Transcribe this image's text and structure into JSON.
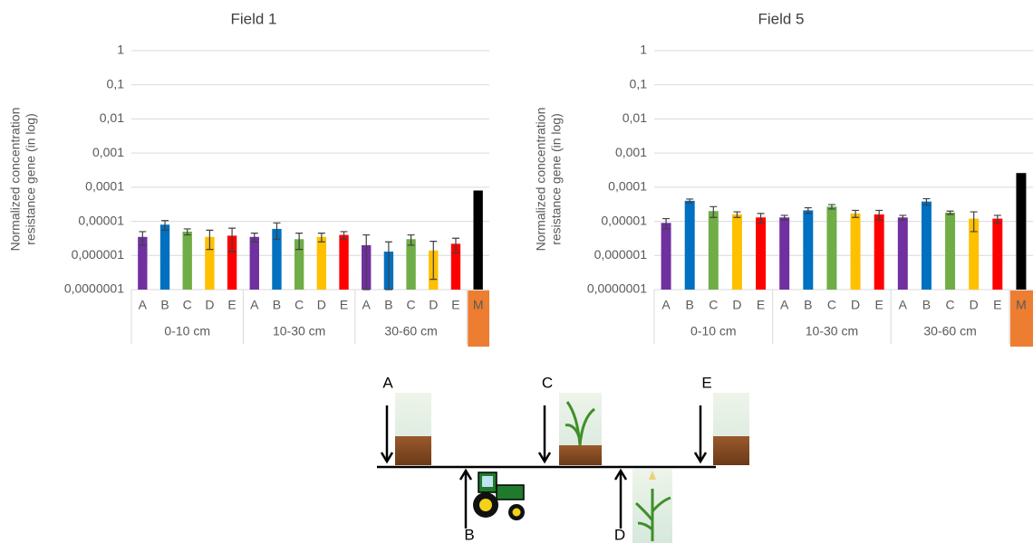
{
  "chart_data": [
    {
      "type": "bar",
      "title": "Field 1",
      "ylabel_lines": [
        "Normalized  concentration",
        "resistance gene  (in log)"
      ],
      "categories": [
        "A",
        "B",
        "C",
        "D",
        "E",
        "A",
        "B",
        "C",
        "D",
        "E",
        "A",
        "B",
        "C",
        "D",
        "E",
        "M"
      ],
      "category_groups": [
        "0-10 cm",
        "10-30 cm",
        "30-60 cm"
      ],
      "values": [
        3.5e-06,
        8e-06,
        5e-06,
        3.5e-06,
        3.8e-06,
        3.5e-06,
        6e-06,
        3e-06,
        3.5e-06,
        4e-06,
        2e-06,
        1.3e-06,
        3e-06,
        1.4e-06,
        2.2e-06,
        8e-05
      ],
      "errors": [
        1.5e-06,
        2.5e-06,
        1e-06,
        2e-06,
        2.5e-06,
        1e-06,
        3e-06,
        1.5e-06,
        1e-06,
        1e-06,
        2e-06,
        1.2e-06,
        1e-06,
        1.2e-06,
        1e-06,
        null
      ],
      "colors": [
        "#7030a0",
        "#0070c0",
        "#70ad47",
        "#ffc000",
        "#ff0000",
        "#7030a0",
        "#0070c0",
        "#70ad47",
        "#ffc000",
        "#ff0000",
        "#7030a0",
        "#0070c0",
        "#70ad47",
        "#ffc000",
        "#ff0000",
        "#000000"
      ],
      "highlight_color": "#ed7d31",
      "log_scale": true,
      "grid": true,
      "ylim": [
        1e-07,
        1
      ],
      "yticks": [
        {
          "value": 1e-07,
          "label": "0,0000001"
        },
        {
          "value": 1e-06,
          "label": "0,000001"
        },
        {
          "value": 1e-05,
          "label": "0,00001"
        },
        {
          "value": 0.0001,
          "label": "0,0001"
        },
        {
          "value": 0.001,
          "label": "0,001"
        },
        {
          "value": 0.01,
          "label": "0,01"
        },
        {
          "value": 0.1,
          "label": "0,1"
        },
        1
      ]
    },
    {
      "type": "bar",
      "title": "Field 5",
      "ylabel_lines": [
        "Normalized  concentration",
        "resistance gene  (in log)"
      ],
      "categories": [
        "A",
        "B",
        "C",
        "D",
        "E",
        "A",
        "B",
        "C",
        "D",
        "E",
        "A",
        "B",
        "C",
        "D",
        "E",
        "M"
      ],
      "category_groups": [
        "0-10 cm",
        "10-30 cm",
        "30-60 cm"
      ],
      "values": [
        9e-06,
        4e-05,
        2e-05,
        1.6e-05,
        1.3e-05,
        1.3e-05,
        2.1e-05,
        2.7e-05,
        1.7e-05,
        1.6e-05,
        1.3e-05,
        3.8e-05,
        1.8e-05,
        1.2e-05,
        1.2e-05,
        0.00026
      ],
      "errors": [
        3e-06,
        5e-06,
        7e-06,
        3e-06,
        4e-06,
        2e-06,
        4e-06,
        4e-06,
        4e-06,
        5e-06,
        2e-06,
        8e-06,
        2e-06,
        7e-06,
        3e-06,
        null
      ],
      "colors": [
        "#7030a0",
        "#0070c0",
        "#70ad47",
        "#ffc000",
        "#ff0000",
        "#7030a0",
        "#0070c0",
        "#70ad47",
        "#ffc000",
        "#ff0000",
        "#7030a0",
        "#0070c0",
        "#70ad47",
        "#ffc000",
        "#ff0000",
        "#000000"
      ],
      "highlight_color": "#ed7d31",
      "log_scale": true,
      "grid": true,
      "ylim": [
        1e-07,
        1
      ],
      "yticks": [
        {
          "value": 1e-07,
          "label": "0,0000001"
        },
        {
          "value": 1e-06,
          "label": "0,000001"
        },
        {
          "value": 1e-05,
          "label": "0,00001"
        },
        {
          "value": 0.0001,
          "label": "0,0001"
        },
        {
          "value": 0.001,
          "label": "0,001"
        },
        {
          "value": 0.01,
          "label": "0,01"
        },
        {
          "value": 0.1,
          "label": "0,1"
        },
        1
      ]
    }
  ],
  "diagram": {
    "labels": [
      "A",
      "B",
      "C",
      "D",
      "E"
    ]
  }
}
